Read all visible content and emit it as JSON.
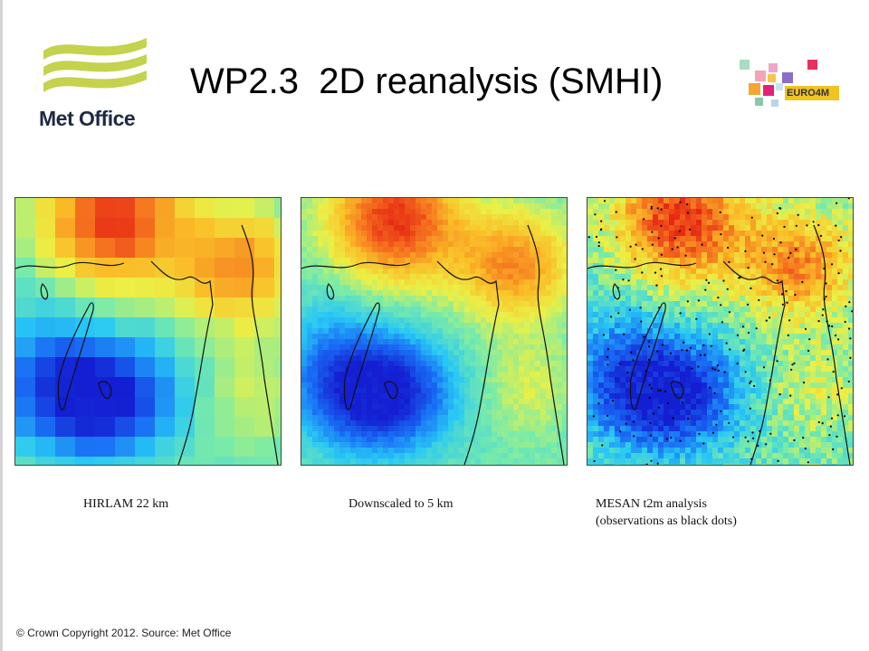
{
  "header": {
    "brand": "Met Office",
    "title": "WP2.3  2D reanalysis (SMHI)",
    "partner_logo": "EURO4M"
  },
  "maps": [
    {
      "caption_lines": [
        "HIRLAM 22 km"
      ]
    },
    {
      "caption_lines": [
        "Downscaled to 5 km"
      ]
    },
    {
      "caption_lines": [
        "MESAN t2m analysis",
        "(observations as black dots)"
      ]
    }
  ],
  "footer": "© Crown  Copyright 2012.  Source: Met Office",
  "colors": {
    "logo_green": "#c4d24e",
    "logo_text": "#1d2a44",
    "map_warm": "#e8321e",
    "map_cold": "#1a3fd8"
  }
}
